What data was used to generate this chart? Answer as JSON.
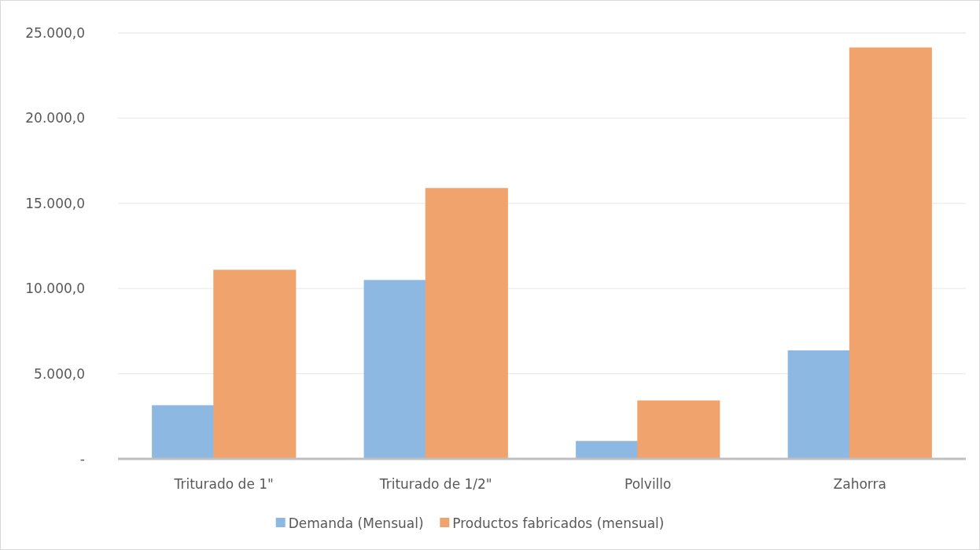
{
  "chart_data": {
    "type": "bar",
    "categories": [
      "Triturado de 1\"",
      "Triturado de 1/2\"",
      "Polvillo",
      "Zahorra"
    ],
    "series": [
      {
        "name": "Demanda (Mensual)",
        "color": "#8db8e2",
        "values": [
          3150,
          10500,
          1050,
          6370
        ]
      },
      {
        "name": "Productos fabricados (mensual)",
        "color": "#f0a36c",
        "values": [
          11100,
          15900,
          3430,
          24150
        ]
      }
    ],
    "ylim": [
      0,
      25000
    ],
    "yticks": [
      {
        "value": 0,
        "label": "-"
      },
      {
        "value": 5000,
        "label": "5.000,0"
      },
      {
        "value": 10000,
        "label": "10.000,0"
      },
      {
        "value": 15000,
        "label": "15.000,0"
      },
      {
        "value": 20000,
        "label": "20.000,0"
      },
      {
        "value": 25000,
        "label": "25.000,0"
      }
    ],
    "grid": "y",
    "legend": "bottom"
  }
}
